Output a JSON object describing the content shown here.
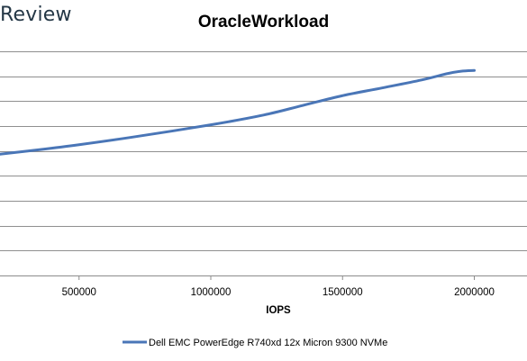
{
  "header": {
    "brand": "Review"
  },
  "chart_data": {
    "type": "line",
    "title": "OracleWorkload",
    "xlabel": "IOPS",
    "ylabel": "",
    "xlim": [
      200000,
      2200000
    ],
    "x_ticks": [
      500000,
      1000000,
      1500000,
      2000000
    ],
    "x_tick_labels": [
      "500000",
      "1000000",
      "1500000",
      "2000000"
    ],
    "ylim": [
      0,
      9
    ],
    "grid": true,
    "legend": "bottom",
    "series": [
      {
        "name": "Dell EMC PowerEdge R740xd 12x Micron 9300 NVMe",
        "color": "#4a76b7",
        "x": [
          200000,
          350000,
          500000,
          700000,
          1000000,
          1200000,
          1350000,
          1500000,
          1650000,
          1800000,
          1900000,
          1950000,
          2000000
        ],
        "y": [
          4.87,
          5.05,
          5.25,
          5.55,
          6.05,
          6.44,
          6.83,
          7.22,
          7.53,
          7.85,
          8.11,
          8.2,
          8.23
        ]
      }
    ]
  }
}
